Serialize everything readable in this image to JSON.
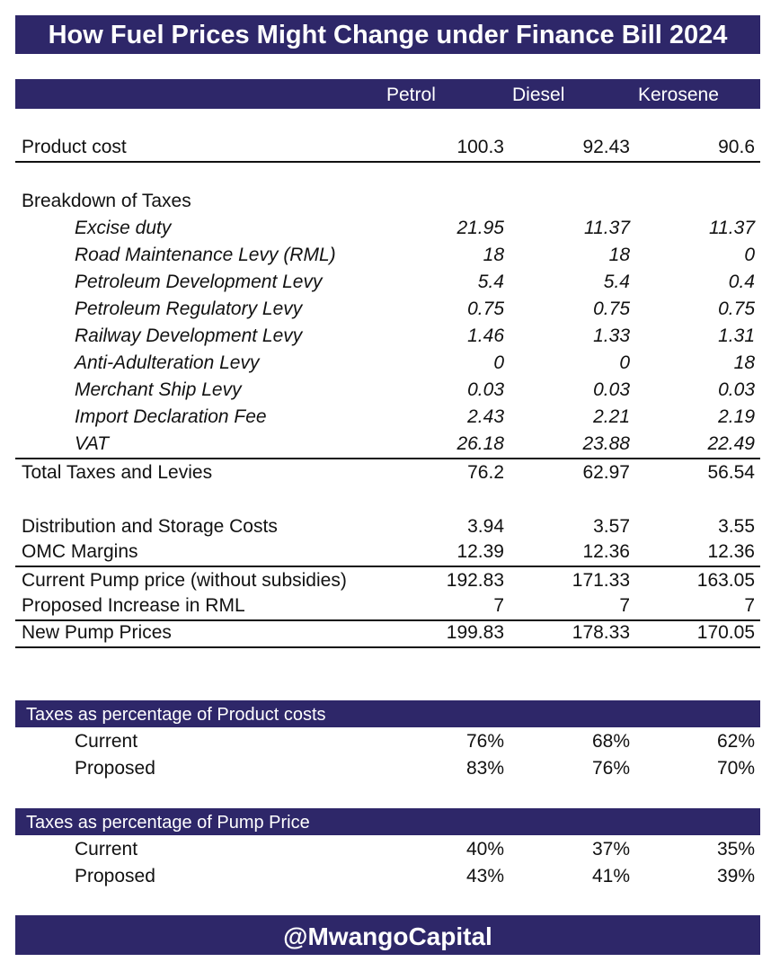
{
  "title": "How Fuel Prices Might Change under Finance Bill 2024",
  "columns": [
    "Petrol",
    "Diesel",
    "Kerosene"
  ],
  "product_cost": {
    "label": "Product cost",
    "values": [
      "100.3",
      "92.43",
      "90.6"
    ]
  },
  "breakdown_heading": "Breakdown of Taxes",
  "taxes": [
    {
      "label": "Excise duty",
      "values": [
        "21.95",
        "11.37",
        "11.37"
      ]
    },
    {
      "label": "Road Maintenance Levy (RML)",
      "values": [
        "18",
        "18",
        "0"
      ]
    },
    {
      "label": "Petroleum Development Levy",
      "values": [
        "5.4",
        "5.4",
        "0.4"
      ]
    },
    {
      "label": "Petroleum Regulatory Levy",
      "values": [
        "0.75",
        "0.75",
        "0.75"
      ]
    },
    {
      "label": "Railway Development Levy",
      "values": [
        "1.46",
        "1.33",
        "1.31"
      ]
    },
    {
      "label": "Anti-Adulteration Levy",
      "values": [
        "0",
        "0",
        "18"
      ]
    },
    {
      "label": "Merchant Ship Levy",
      "values": [
        "0.03",
        "0.03",
        "0.03"
      ]
    },
    {
      "label": "Import Declaration Fee",
      "values": [
        "2.43",
        "2.21",
        "2.19"
      ]
    },
    {
      "label": "VAT",
      "values": [
        "26.18",
        "23.88",
        "22.49"
      ]
    }
  ],
  "total_taxes": {
    "label": "Total Taxes and Levies",
    "values": [
      "76.2",
      "62.97",
      "56.54"
    ]
  },
  "distribution": {
    "label": "Distribution and Storage Costs",
    "values": [
      "3.94",
      "3.57",
      "3.55"
    ]
  },
  "omc": {
    "label": "OMC Margins",
    "values": [
      "12.39",
      "12.36",
      "12.36"
    ]
  },
  "current_pump": {
    "label": "Current Pump price (without subsidies)",
    "values": [
      "192.83",
      "171.33",
      "163.05"
    ]
  },
  "proposed_rml": {
    "label": "Proposed Increase in RML",
    "values": [
      "7",
      "7",
      "7"
    ]
  },
  "new_pump": {
    "label": "New Pump Prices",
    "values": [
      "199.83",
      "178.33",
      "170.05"
    ]
  },
  "pct_product": {
    "heading": "Taxes as percentage of Product costs",
    "rows": [
      {
        "label": "Current",
        "values": [
          "76%",
          "68%",
          "62%"
        ]
      },
      {
        "label": "Proposed",
        "values": [
          "83%",
          "76%",
          "70%"
        ]
      }
    ]
  },
  "pct_pump": {
    "heading": "Taxes as percentage of Pump Price",
    "rows": [
      {
        "label": "Current",
        "values": [
          "40%",
          "37%",
          "35%"
        ]
      },
      {
        "label": "Proposed",
        "values": [
          "43%",
          "41%",
          "39%"
        ]
      }
    ]
  },
  "footer": "@MwangoCapital",
  "colors": {
    "banner": "#2e2769",
    "banner_text": "#ffffff",
    "text": "#111111"
  }
}
